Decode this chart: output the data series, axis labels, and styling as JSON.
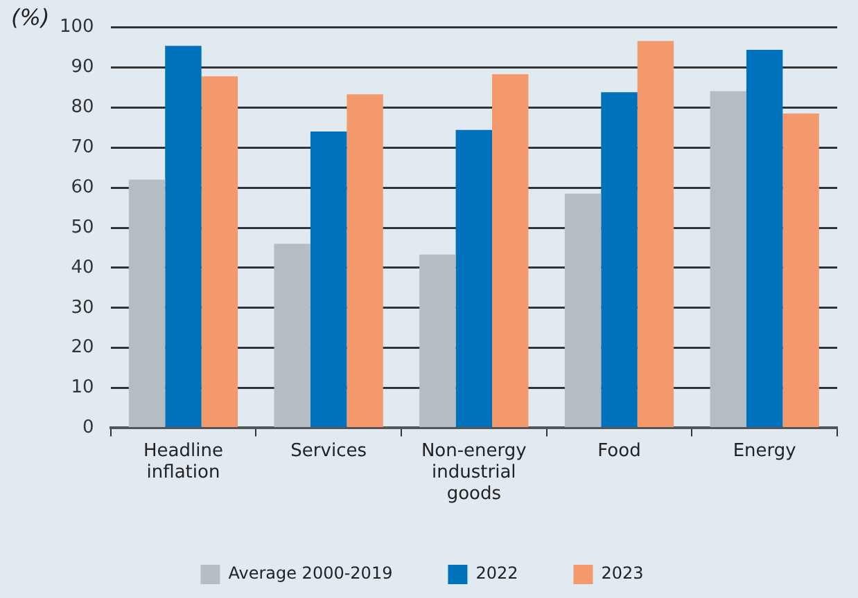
{
  "chart_data": {
    "type": "bar",
    "ylabel": "(%)",
    "categories": [
      "Headline inflation",
      "Services",
      "Non-energy industrial goods",
      "Food",
      "Energy"
    ],
    "series": [
      {
        "name": "Average 2000-2019",
        "color": "#b4bdc2",
        "values": [
          62,
          46,
          43.3,
          58.5,
          84.1
        ]
      },
      {
        "name": "2022",
        "color": "#0072bb",
        "values": [
          95.4,
          74,
          74.4,
          83.8,
          94.4
        ]
      },
      {
        "name": "2023",
        "color": "#f3996c",
        "values": [
          87.8,
          83.3,
          88.3,
          96.6,
          78.5
        ]
      }
    ],
    "ylim": [
      0,
      100
    ],
    "yticks": [
      0,
      10,
      20,
      30,
      40,
      50,
      60,
      70,
      80,
      90,
      100
    ],
    "grid": "y",
    "legend": "bottom"
  }
}
